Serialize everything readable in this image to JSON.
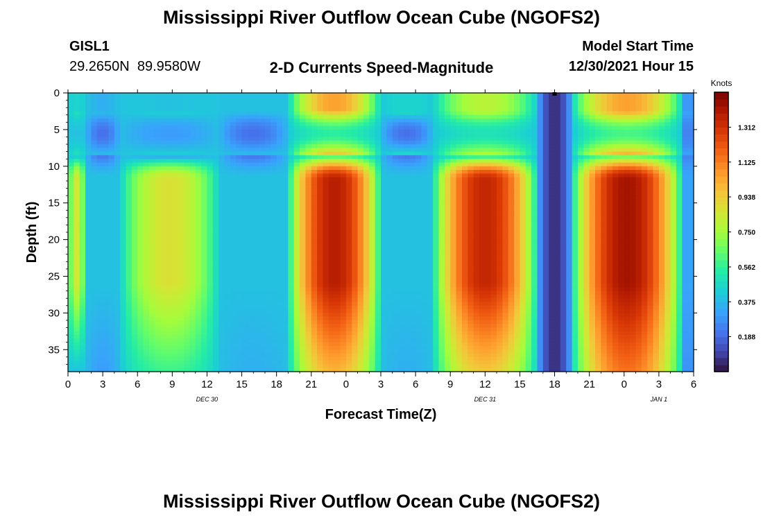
{
  "page": {
    "title": "Mississippi River Outflow Ocean Cube (NGOFS2)",
    "footer_title": "Mississippi River Outflow Ocean Cube (NGOFS2)"
  },
  "station": {
    "name": "GISL1",
    "coords": "29.2650N  89.9580W"
  },
  "plot": {
    "subtitle": "2-D Currents Speed-Magnitude"
  },
  "model": {
    "label": "Model Start Time",
    "value": "12/30/2021 Hour 15"
  },
  "chart_data": {
    "type": "heatmap",
    "title": "2-D Currents Speed-Magnitude",
    "xlabel": "Forecast Time(Z)",
    "ylabel": "Depth (ft)",
    "x_range": [
      0,
      54
    ],
    "x_unit": "hours from 12/30/2021 00Z",
    "x_ticks": [
      {
        "x": 0,
        "label": "0"
      },
      {
        "x": 3,
        "label": "3"
      },
      {
        "x": 6,
        "label": "6"
      },
      {
        "x": 9,
        "label": "9"
      },
      {
        "x": 12,
        "label": "12"
      },
      {
        "x": 15,
        "label": "15"
      },
      {
        "x": 18,
        "label": "18"
      },
      {
        "x": 21,
        "label": "21"
      },
      {
        "x": 24,
        "label": "0"
      },
      {
        "x": 27,
        "label": "3"
      },
      {
        "x": 30,
        "label": "6"
      },
      {
        "x": 33,
        "label": "9"
      },
      {
        "x": 36,
        "label": "12"
      },
      {
        "x": 39,
        "label": "15"
      },
      {
        "x": 42,
        "label": "18"
      },
      {
        "x": 45,
        "label": "21"
      },
      {
        "x": 48,
        "label": "0"
      },
      {
        "x": 51,
        "label": "3"
      },
      {
        "x": 54,
        "label": "6"
      }
    ],
    "date_labels": [
      {
        "x": 12,
        "label": "DEC 30"
      },
      {
        "x": 36,
        "label": "DEC 31"
      },
      {
        "x": 51,
        "label": "JAN 1"
      }
    ],
    "y_range": [
      0,
      38
    ],
    "y_inverted": true,
    "y_ticks": [
      0,
      5,
      10,
      15,
      20,
      25,
      30,
      35
    ],
    "colorbar": {
      "label": "Knots",
      "min": 0,
      "max": 1.5,
      "ticks": [
        1.312,
        1.125,
        0.938,
        0.75,
        0.562,
        0.375,
        0.188
      ],
      "colormap": "turbo"
    },
    "series": [
      {
        "x_start": 0,
        "x_end": 1.5,
        "peak": 0.85,
        "surface": 0.5,
        "surface_peak": 0.45,
        "mid": 0.4,
        "bottom": 0.4
      },
      {
        "x_start": 1.5,
        "x_end": 4.5,
        "peak": 0.4,
        "surface": 0.4,
        "surface_peak": 0.35,
        "mid": 0.2,
        "bottom": 0.3
      },
      {
        "x_start": 4.5,
        "x_end": 13,
        "peak": 0.88,
        "surface": 0.45,
        "surface_peak": 0.4,
        "mid": 0.3,
        "bottom": 0.58
      },
      {
        "x_start": 13,
        "x_end": 19,
        "peak": 0.4,
        "surface": 0.4,
        "surface_peak": 0.4,
        "mid": 0.2,
        "bottom": 0.35
      },
      {
        "x_start": 19,
        "x_end": 27,
        "peak": 1.38,
        "surface": 1.0,
        "surface_peak": 1.05,
        "mid": 0.55,
        "bottom": 1.0
      },
      {
        "x_start": 27,
        "x_end": 31.5,
        "peak": 0.4,
        "surface": 0.5,
        "surface_peak": 0.45,
        "mid": 0.2,
        "bottom": 0.35
      },
      {
        "x_start": 31.5,
        "x_end": 40.5,
        "peak": 1.35,
        "surface": 0.8,
        "surface_peak": 0.8,
        "mid": 0.5,
        "bottom": 0.95
      },
      {
        "x_start": 40.5,
        "x_end": 43.5,
        "peak": 0.06,
        "surface": 0.06,
        "surface_peak": 0.06,
        "mid": 0.06,
        "bottom": 0.06
      },
      {
        "x_start": 43.5,
        "x_end": 53,
        "peak": 1.42,
        "surface": 1.05,
        "surface_peak": 1.05,
        "mid": 0.6,
        "bottom": 1.15
      },
      {
        "x_start": 53,
        "x_end": 54,
        "peak": 0.3,
        "surface": 0.3,
        "surface_peak": 0.25,
        "mid": 0.2,
        "bottom": 0.25
      }
    ]
  }
}
